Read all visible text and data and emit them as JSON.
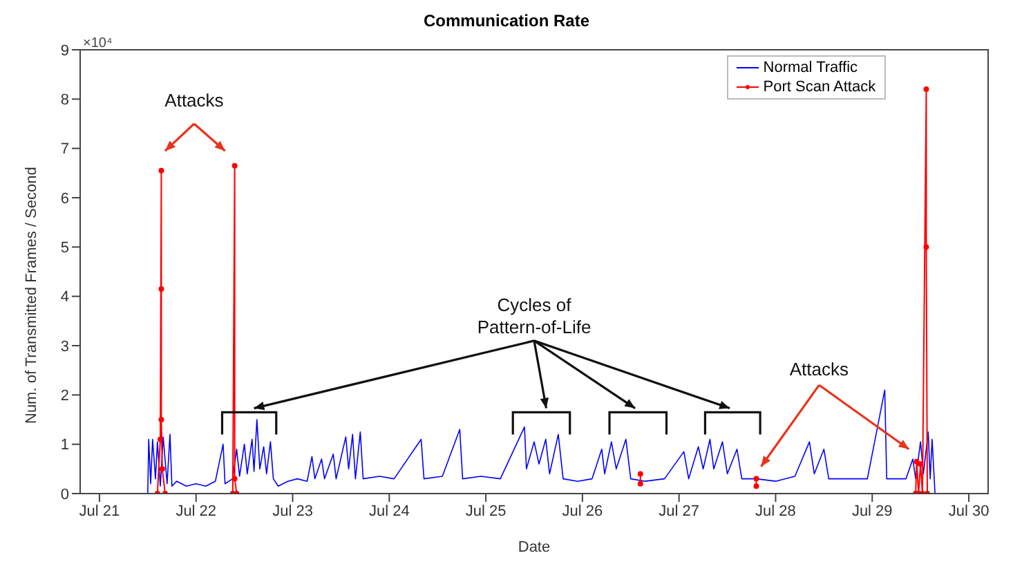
{
  "chart_data": {
    "type": "line",
    "title": "Communication Rate",
    "xlabel": "Date",
    "ylabel": "Num. of Transmitted Frames / Second",
    "annotations": [
      "×10⁴",
      "Attacks",
      "Cycles of Pattern-of-Life",
      "Attacks"
    ],
    "xlim": [
      "--07-20T19:12",
      "--07-30T04:48"
    ],
    "xticks": [
      {
        "value": "--07-21",
        "label": "Jul 21"
      },
      {
        "value": "--07-22",
        "label": "Jul 22"
      },
      {
        "value": "--07-23",
        "label": "Jul 23"
      },
      {
        "value": "--07-24",
        "label": "Jul 24"
      },
      {
        "value": "--07-25",
        "label": "Jul 25"
      },
      {
        "value": "--07-26",
        "label": "Jul 26"
      },
      {
        "value": "--07-27",
        "label": "Jul 27"
      },
      {
        "value": "--07-28",
        "label": "Jul 28"
      },
      {
        "value": "--07-29",
        "label": "Jul 29"
      },
      {
        "value": "--07-30",
        "label": "Jul 30"
      }
    ],
    "ylim": [
      0,
      9
    ],
    "yticks": [
      0,
      1,
      2,
      3,
      4,
      5,
      6,
      7,
      8,
      9
    ],
    "grid": false,
    "legend": "top right",
    "series": [
      {
        "name": "Normal Traffic",
        "color": "#0000ff",
        "marker": "none",
        "x": [
          "--07-21T12:00",
          "--07-21T12:14",
          "--07-21T12:43",
          "--07-21T13:12",
          "--07-21T13:55",
          "--07-21T14:24",
          "--07-21T15:07",
          "--07-21T15:50",
          "--07-21T16:48",
          "--07-21T17:31",
          "--07-21T18:00",
          "--07-21T19:12",
          "--07-21T21:36",
          "--07-22T00:00",
          "--07-22T02:24",
          "--07-22T04:48",
          "--07-22T06:43",
          "--07-22T07:12",
          "--07-22T09:07",
          "--07-22T10:05",
          "--07-22T10:48",
          "--07-22T12:00",
          "--07-22T12:43",
          "--07-22T13:55",
          "--07-22T14:24",
          "--07-22T15:07",
          "--07-22T15:50",
          "--07-22T16:48",
          "--07-22T17:31",
          "--07-22T18:29",
          "--07-22T19:12",
          "--07-22T20:24",
          "--07-22T22:48",
          "--07-23T01:12",
          "--07-23T03:36",
          "--07-23T04:48",
          "--07-23T05:31",
          "--07-23T07:12",
          "--07-23T07:55",
          "--07-23T10:05",
          "--07-23T10:48",
          "--07-23T13:12",
          "--07-23T13:55",
          "--07-23T14:53",
          "--07-23T15:36",
          "--07-23T16:48",
          "--07-23T17:31",
          "--07-23T21:36",
          "--07-24T01:12",
          "--07-24T07:55",
          "--07-24T08:38",
          "--07-24T13:12",
          "--07-24T17:31",
          "--07-24T18:14",
          "--07-24T22:48",
          "--07-25T03:36",
          "--07-25T09:36",
          "--07-25T10:05",
          "--07-25T12:00",
          "--07-25T13:12",
          "--07-25T14:53",
          "--07-25T15:50",
          "--07-25T18:00",
          "--07-25T19:12",
          "--07-25T22:48",
          "--07-26T02:24",
          "--07-26T04:48",
          "--07-26T05:31",
          "--07-26T07:12",
          "--07-26T08:24",
          "--07-26T10:48",
          "--07-26T12:00",
          "--07-26T15:36",
          "--07-26T20:24",
          "--07-27T01:12",
          "--07-27T02:24",
          "--07-27T04:48",
          "--07-27T06:00",
          "--07-27T07:41",
          "--07-27T08:38",
          "--07-27T10:48",
          "--07-27T12:00",
          "--07-27T14:24",
          "--07-27T15:36",
          "--07-27T19:12",
          "--07-28T00:00",
          "--07-28T04:48",
          "--07-28T08:24",
          "--07-28T09:36",
          "--07-28T12:00",
          "--07-28T13:12",
          "--07-28T18:00",
          "--07-28T22:48",
          "--07-29T03:07",
          "--07-29T03:36",
          "--07-29T08:24",
          "--07-29T10:05",
          "--07-29T10:48",
          "--07-29T12:00",
          "--07-29T12:43",
          "--07-29T13:55",
          "--07-29T14:24",
          "--07-29T14:53",
          "--07-29T15:36"
        ],
        "values": [
          0,
          1.1,
          0.2,
          1.1,
          0.3,
          1.05,
          0.15,
          1.15,
          0.2,
          1.2,
          0.15,
          0.25,
          0.15,
          0.2,
          0.15,
          0.25,
          1.0,
          0.2,
          0.3,
          0.9,
          0.35,
          1.0,
          0.4,
          1.1,
          0.45,
          1.5,
          0.5,
          0.95,
          0.4,
          1.05,
          0.3,
          0.15,
          0.25,
          0.3,
          0.25,
          0.75,
          0.3,
          0.7,
          0.3,
          0.8,
          0.3,
          1.15,
          0.5,
          1.2,
          0.3,
          1.25,
          0.3,
          0.35,
          0.3,
          1.1,
          0.3,
          0.35,
          1.3,
          0.3,
          0.35,
          0.3,
          1.35,
          0.5,
          1.05,
          0.6,
          1.1,
          0.4,
          1.2,
          0.3,
          0.25,
          0.3,
          0.9,
          0.4,
          1.05,
          0.5,
          1.1,
          0.3,
          0.25,
          0.3,
          0.85,
          0.3,
          0.95,
          0.5,
          1.1,
          0.5,
          1.05,
          0.4,
          0.9,
          0.3,
          0.3,
          0.25,
          0.35,
          1.05,
          0.4,
          0.9,
          0.3,
          0.3,
          0.3,
          2.1,
          0.3,
          0.3,
          0.7,
          0.3,
          1.05,
          0.4,
          1.25,
          0.3,
          1.1,
          0
        ]
      },
      {
        "name": "Port Scan Attack",
        "color": "#ff0000",
        "marker": "circle",
        "x": [
          "--07-21T14:24",
          "--07-21T15:07",
          "--07-21T15:22",
          "--07-21T15:22",
          "--07-21T15:22",
          "--07-21T15:36",
          "--07-21T16:19",
          "--07-21T16:48",
          "--07-22T09:07",
          "--07-22T09:36",
          "--07-22T09:36",
          "--07-22T10:05",
          "--07-22T12:00",
          "--07-26T14:24",
          "--07-26T14:24",
          "--07-26T16:48",
          "--07-27T19:12",
          "--07-27T19:12",
          "--07-27T21:36",
          "--07-29T10:48",
          "--07-29T11:02",
          "--07-29T11:31",
          "--07-29T12:00",
          "--07-29T12:29",
          "--07-29T13:26",
          "--07-29T13:26",
          "--07-29T13:41"
        ],
        "values": [
          0,
          1.1,
          6.55,
          4.15,
          1.5,
          0.5,
          0,
          null,
          0,
          6.65,
          0.3,
          0,
          null,
          0.2,
          0.4,
          null,
          0.15,
          0.3,
          null,
          0,
          0.65,
          0,
          0.6,
          0,
          8.2,
          5.0,
          0
        ]
      }
    ]
  }
}
